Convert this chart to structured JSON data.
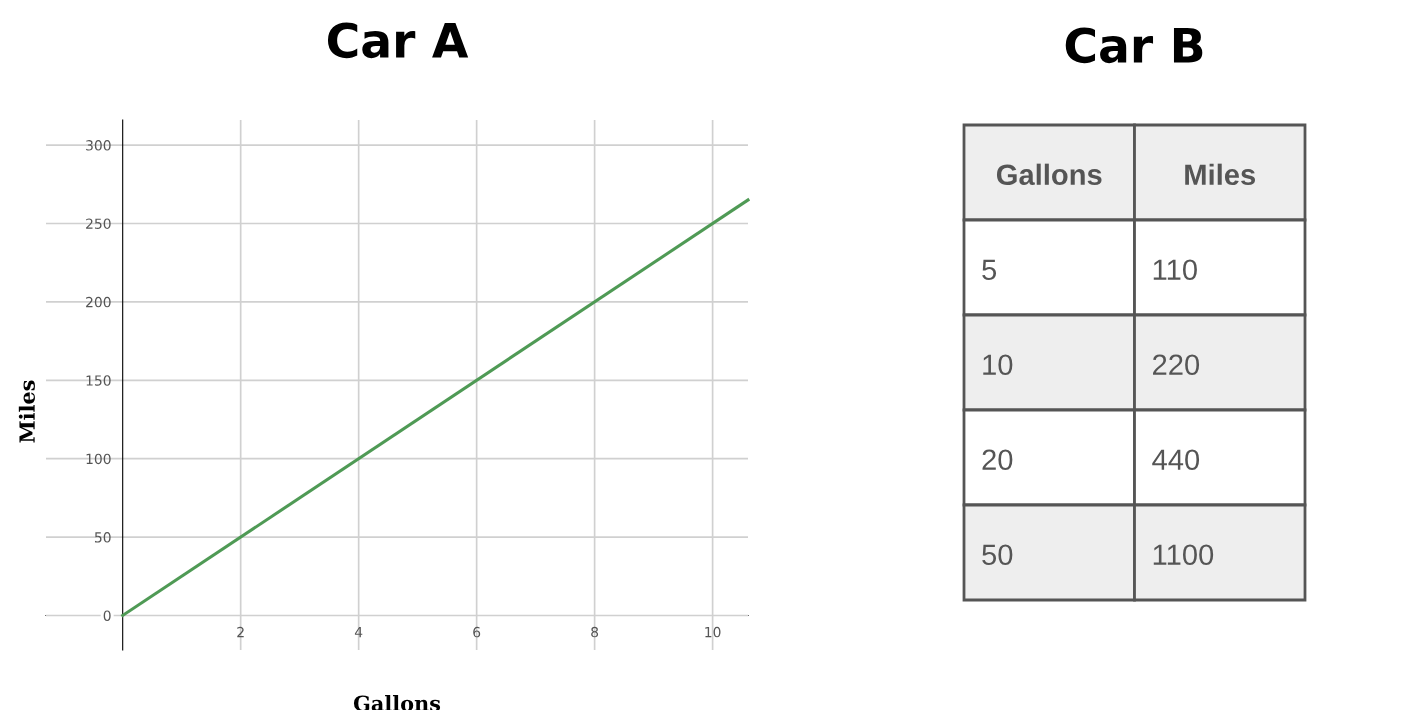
{
  "chart_data": [
    {
      "type": "line",
      "title": "Car A",
      "xlabel": "Gallons",
      "ylabel": "Miles",
      "x": [
        0,
        10.6
      ],
      "series": [
        {
          "color": "#4f9a55",
          "values": [
            0,
            265
          ]
        }
      ],
      "xlim": [
        -1.3,
        10.6
      ],
      "ylim": [
        -22,
        316
      ],
      "xticks": [
        2,
        4,
        6,
        8,
        10
      ],
      "yticks": [
        0,
        50,
        100,
        150,
        200,
        250,
        300
      ],
      "grid": true,
      "marker": "none",
      "line_style": "solid"
    },
    {
      "type": "other",
      "title": "Car B",
      "xlabel": "Gallons",
      "ylabel": "Miles",
      "categories": [
        "5",
        "10",
        "20",
        "50"
      ],
      "values": [
        110,
        220,
        440,
        1100
      ],
      "data_labels": true
    }
  ]
}
